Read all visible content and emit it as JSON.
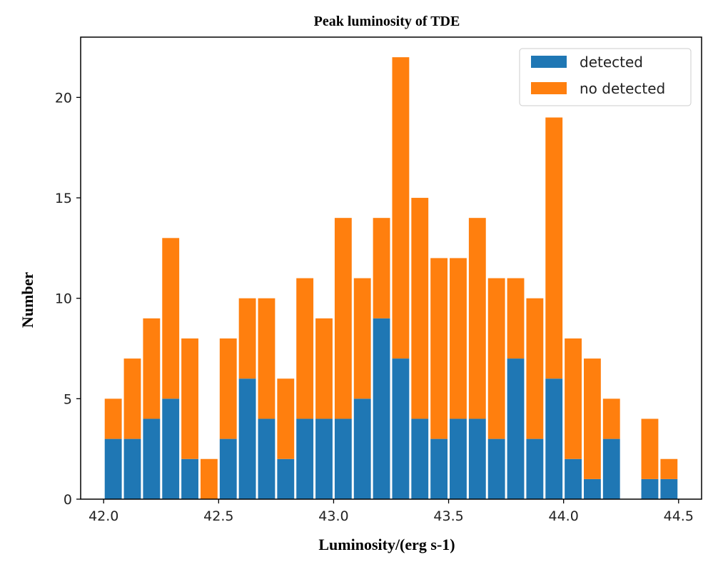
{
  "chart_data": {
    "type": "bar",
    "stacked": true,
    "title": "Peak luminosity of TDE",
    "xlabel": "Luminosity/(erg s-1)",
    "ylabel": "Number",
    "xlim": [
      41.9,
      44.6
    ],
    "ylim": [
      0,
      23
    ],
    "bin_start": 42.0,
    "bin_width": 0.08333,
    "xticks": [
      "42.0",
      "42.5",
      "43.0",
      "43.5",
      "44.0",
      "44.5"
    ],
    "xtick_values": [
      42.0,
      42.5,
      43.0,
      43.5,
      44.0,
      44.5
    ],
    "yticks": [
      "0",
      "5",
      "10",
      "15",
      "20"
    ],
    "ytick_values": [
      0,
      5,
      10,
      15,
      20
    ],
    "legend_position": "top-right",
    "series": [
      {
        "name": "detected",
        "color": "#1f77b4",
        "values": [
          3,
          3,
          4,
          5,
          2,
          0,
          3,
          6,
          4,
          2,
          4,
          4,
          4,
          5,
          9,
          7,
          4,
          3,
          4,
          4,
          3,
          7,
          3,
          6,
          2,
          1,
          3,
          0,
          1,
          1
        ]
      },
      {
        "name": "no detected",
        "color": "#ff7f0e",
        "values": [
          2,
          4,
          5,
          8,
          6,
          2,
          5,
          4,
          6,
          4,
          7,
          5,
          10,
          6,
          5,
          15,
          11,
          9,
          8,
          10,
          8,
          4,
          7,
          13,
          6,
          6,
          2,
          0,
          3,
          1
        ]
      }
    ],
    "totals": [
      5,
      7,
      9,
      13,
      8,
      2,
      8,
      10,
      10,
      6,
      11,
      9,
      14,
      11,
      14,
      22,
      15,
      12,
      12,
      14,
      11,
      11,
      10,
      19,
      8,
      7,
      5,
      0,
      4,
      2
    ]
  }
}
